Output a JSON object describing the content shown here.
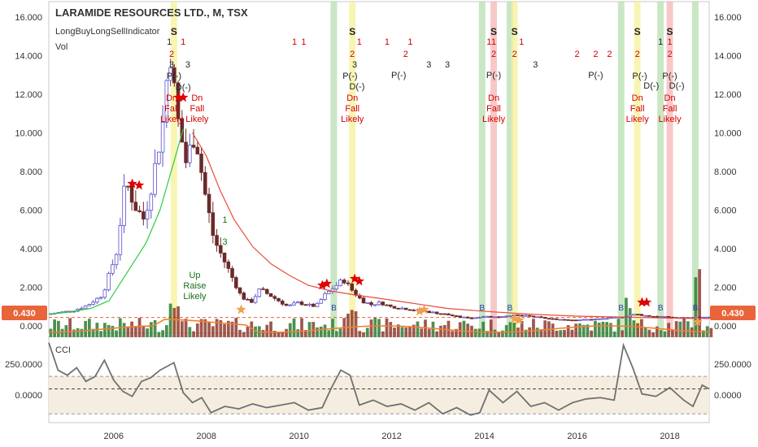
{
  "header": {
    "title": "LARAMIDE RESOURCES LTD., M, TSX",
    "indicator": "LongBuyLongSellIndicator",
    "volume_label": "Vol"
  },
  "price_badge": {
    "left": "0.430",
    "right": "0.430"
  },
  "cci_label": "CCI",
  "price_axis": {
    "ticks": [
      "16.000",
      "14.000",
      "12.000",
      "10.000",
      "8.000",
      "6.000",
      "4.000",
      "2.000",
      "0.000"
    ],
    "values": [
      16,
      14,
      12,
      10,
      8,
      6,
      4,
      2,
      0
    ]
  },
  "cci_axis": {
    "ticks": [
      "250.0000",
      "0.0000"
    ],
    "values": [
      250,
      0
    ]
  },
  "time_axis": {
    "ticks": [
      "2006",
      "2008",
      "2010",
      "2012",
      "2014",
      "2016",
      "2018"
    ],
    "values": [
      2006,
      2008,
      2010,
      2012,
      2014,
      2016,
      2018
    ]
  },
  "signals": {
    "sell": "S",
    "buy": "B",
    "dn_text": "Dn",
    "fall_text": "Fall",
    "likely_text": "Likely",
    "up_text": "Up",
    "raise_text": "Raise",
    "p_minus": "P(-)",
    "d_minus": "D(-)",
    "n1": "1",
    "n2": "2",
    "n3": "3"
  },
  "colors": {
    "up_candle": "#5b52c8",
    "down_candle": "#6b2a2a",
    "ma_green": "#2ecc40",
    "ma_red": "#e74c3c",
    "vol_green": "#2e7d32",
    "vol_red": "#8e3b2f",
    "vol_ma": "#f08030",
    "band_green": "#b7dfb0",
    "band_yellow": "#f6f29a",
    "band_red": "#f5b5b5",
    "cci_line": "#707070",
    "cci_bg": "#f5ede0",
    "price_line": "#e8643a"
  },
  "chart_data": {
    "type": "candlestick",
    "title": "LARAMIDE RESOURCES LTD., M, TSX",
    "x_range": [
      2004.6,
      2018.85
    ],
    "price_range": [
      -0.3,
      16.8
    ],
    "current_price": 0.43,
    "price_closes": [
      [
        2004.6,
        0.6
      ],
      [
        2004.9,
        0.7
      ],
      [
        2005.2,
        0.8
      ],
      [
        2005.5,
        1.1
      ],
      [
        2005.8,
        1.6
      ],
      [
        2006.1,
        3.8
      ],
      [
        2006.3,
        7.5
      ],
      [
        2006.5,
        6.2
      ],
      [
        2006.7,
        5.5
      ],
      [
        2006.9,
        7.8
      ],
      [
        2007.1,
        10.5
      ],
      [
        2007.25,
        14.5
      ],
      [
        2007.4,
        11.0
      ],
      [
        2007.6,
        8.5
      ],
      [
        2007.8,
        10.0
      ],
      [
        2008.0,
        7.0
      ],
      [
        2008.2,
        4.5
      ],
      [
        2008.4,
        3.5
      ],
      [
        2008.6,
        2.5
      ],
      [
        2008.8,
        1.5
      ],
      [
        2009.0,
        1.2
      ],
      [
        2009.2,
        1.9
      ],
      [
        2009.4,
        1.6
      ],
      [
        2009.6,
        1.3
      ],
      [
        2009.8,
        1.0
      ],
      [
        2010.0,
        1.2
      ],
      [
        2010.2,
        1.1
      ],
      [
        2010.4,
        1.0
      ],
      [
        2010.6,
        1.6
      ],
      [
        2010.8,
        2.0
      ],
      [
        2011.0,
        2.4
      ],
      [
        2011.2,
        1.8
      ],
      [
        2011.4,
        1.3
      ],
      [
        2011.6,
        1.1
      ],
      [
        2011.8,
        1.2
      ],
      [
        2012.0,
        1.0
      ],
      [
        2012.3,
        0.9
      ],
      [
        2012.6,
        0.8
      ],
      [
        2012.9,
        0.7
      ],
      [
        2013.2,
        0.6
      ],
      [
        2013.5,
        0.45
      ],
      [
        2013.8,
        0.4
      ],
      [
        2014.0,
        0.5
      ],
      [
        2014.3,
        0.45
      ],
      [
        2014.6,
        0.55
      ],
      [
        2015.0,
        0.5
      ],
      [
        2015.5,
        0.35
      ],
      [
        2016.0,
        0.3
      ],
      [
        2016.5,
        0.35
      ],
      [
        2017.0,
        0.45
      ],
      [
        2017.3,
        0.6
      ],
      [
        2017.6,
        0.5
      ],
      [
        2018.0,
        0.45
      ],
      [
        2018.3,
        0.4
      ],
      [
        2018.6,
        0.43
      ]
    ],
    "ma_green": [
      [
        2004.6,
        0.6
      ],
      [
        2005.0,
        0.7
      ],
      [
        2005.5,
        0.9
      ],
      [
        2005.9,
        1.3
      ],
      [
        2006.3,
        2.8
      ],
      [
        2006.7,
        4.3
      ],
      [
        2007.0,
        6.0
      ],
      [
        2007.3,
        8.5
      ],
      [
        2007.5,
        10.2
      ]
    ],
    "ma_red": [
      [
        2007.7,
        10.0
      ],
      [
        2008.0,
        8.8
      ],
      [
        2008.3,
        7.0
      ],
      [
        2008.6,
        5.5
      ],
      [
        2009.0,
        4.1
      ],
      [
        2009.4,
        3.2
      ],
      [
        2009.8,
        2.6
      ],
      [
        2010.2,
        2.1
      ],
      [
        2010.7,
        1.8
      ],
      [
        2011.2,
        1.6
      ],
      [
        2011.8,
        1.4
      ],
      [
        2012.5,
        1.15
      ],
      [
        2013.2,
        0.9
      ],
      [
        2014.0,
        0.75
      ],
      [
        2015.0,
        0.6
      ],
      [
        2016.0,
        0.5
      ],
      [
        2017.0,
        0.45
      ],
      [
        2018.0,
        0.4
      ],
      [
        2018.85,
        0.38
      ]
    ],
    "cci_range": [
      -220,
      470
    ],
    "cci": [
      [
        2004.6,
        420
      ],
      [
        2004.8,
        200
      ],
      [
        2005.0,
        160
      ],
      [
        2005.2,
        220
      ],
      [
        2005.4,
        110
      ],
      [
        2005.6,
        150
      ],
      [
        2005.8,
        280
      ],
      [
        2006.0,
        120
      ],
      [
        2006.2,
        30
      ],
      [
        2006.4,
        -10
      ],
      [
        2006.6,
        110
      ],
      [
        2006.8,
        140
      ],
      [
        2007.0,
        200
      ],
      [
        2007.3,
        260
      ],
      [
        2007.5,
        20
      ],
      [
        2007.7,
        -60
      ],
      [
        2007.9,
        -20
      ],
      [
        2008.1,
        -140
      ],
      [
        2008.4,
        -90
      ],
      [
        2008.7,
        -110
      ],
      [
        2009.0,
        -70
      ],
      [
        2009.3,
        -100
      ],
      [
        2009.6,
        -80
      ],
      [
        2009.9,
        -60
      ],
      [
        2010.2,
        -120
      ],
      [
        2010.5,
        -100
      ],
      [
        2010.7,
        60
      ],
      [
        2010.9,
        200
      ],
      [
        2011.1,
        160
      ],
      [
        2011.3,
        -80
      ],
      [
        2011.6,
        -40
      ],
      [
        2011.9,
        -90
      ],
      [
        2012.2,
        -70
      ],
      [
        2012.5,
        -120
      ],
      [
        2012.8,
        -60
      ],
      [
        2013.1,
        -150
      ],
      [
        2013.4,
        -100
      ],
      [
        2013.7,
        -160
      ],
      [
        2013.9,
        -140
      ],
      [
        2014.1,
        40
      ],
      [
        2014.4,
        -60
      ],
      [
        2014.7,
        30
      ],
      [
        2015.0,
        -90
      ],
      [
        2015.3,
        -60
      ],
      [
        2015.6,
        -120
      ],
      [
        2015.9,
        -60
      ],
      [
        2016.2,
        -30
      ],
      [
        2016.5,
        -20
      ],
      [
        2016.8,
        -40
      ],
      [
        2017.0,
        400
      ],
      [
        2017.2,
        220
      ],
      [
        2017.4,
        10
      ],
      [
        2017.7,
        -10
      ],
      [
        2018.0,
        60
      ],
      [
        2018.3,
        -40
      ],
      [
        2018.5,
        -90
      ],
      [
        2018.7,
        80
      ],
      [
        2018.85,
        50
      ]
    ],
    "cci_levels": {
      "upper": 150,
      "middle": 50,
      "lower": -150
    },
    "bands": [
      {
        "x": 2007.3,
        "color": "yellow"
      },
      {
        "x": 2010.75,
        "color": "green"
      },
      {
        "x": 2011.15,
        "color": "yellow"
      },
      {
        "x": 2013.95,
        "color": "green"
      },
      {
        "x": 2014.2,
        "color": "red"
      },
      {
        "x": 2014.55,
        "color": "green"
      },
      {
        "x": 2014.65,
        "color": "yellow"
      },
      {
        "x": 2016.95,
        "color": "green"
      },
      {
        "x": 2017.3,
        "color": "yellow"
      },
      {
        "x": 2017.8,
        "color": "green"
      },
      {
        "x": 2018.0,
        "color": "red"
      },
      {
        "x": 2018.55,
        "color": "green"
      }
    ]
  }
}
